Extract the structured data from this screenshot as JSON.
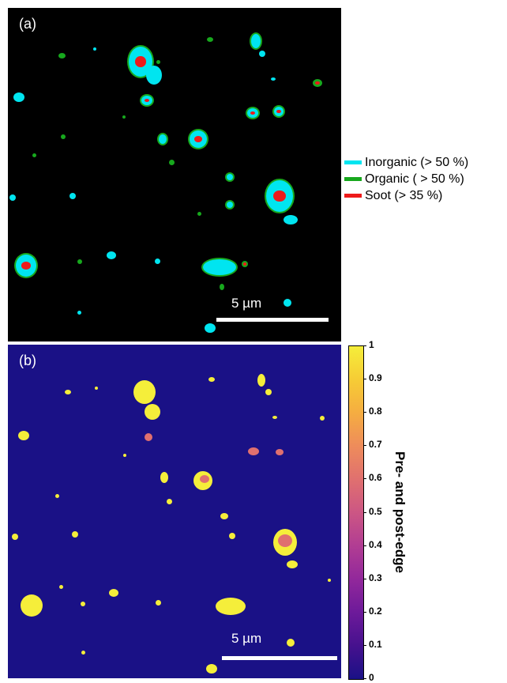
{
  "panel_a": {
    "label": "(a)",
    "scale_bar_label": "5 µm",
    "colors": {
      "inorganic": "#00e5f0",
      "organic": "#17a81d",
      "soot": "#ee1a1a",
      "background": "#000000"
    }
  },
  "legend": {
    "items": [
      {
        "label": "Inorganic (> 50 %)",
        "color": "#00e5f0"
      },
      {
        "label": "Organic ( > 50 %)",
        "color": "#17a81d"
      },
      {
        "label": "Soot (> 35 %)",
        "color": "#ee1a1a"
      }
    ]
  },
  "panel_b": {
    "label": "(b)",
    "scale_bar_label": "5 µm",
    "colors": {
      "background": "#1a1186",
      "high": "#f5ee3a",
      "mid": "#e0706f"
    }
  },
  "colorbar": {
    "title": "Pre- and post-edge",
    "range": [
      0,
      1
    ],
    "ticks": [
      "1",
      "0.9",
      "0.8",
      "0.7",
      "0.6",
      "0.5",
      "0.4",
      "0.3",
      "0.2",
      "0.1",
      "0"
    ]
  }
}
